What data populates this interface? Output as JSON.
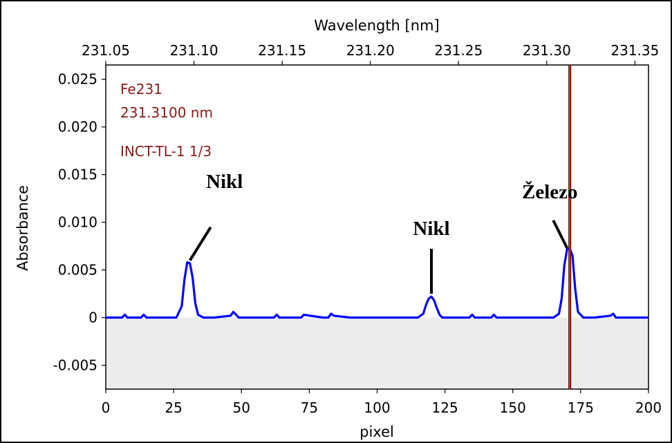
{
  "chart_data": {
    "type": "line",
    "xlabel": "pixel",
    "ylabel": "Absorbance",
    "top_axis_label": "Wavelength [nm]",
    "xlim": [
      0,
      200
    ],
    "ylim": [
      -0.0075,
      0.0265
    ],
    "x_ticks": [
      0,
      25,
      50,
      75,
      100,
      125,
      150,
      175,
      200
    ],
    "y_ticks": [
      -0.005,
      0,
      0.005,
      0.01,
      0.015,
      0.02,
      0.025
    ],
    "y_tick_labels": [
      "-0.005",
      "0",
      "0.005",
      "0.010",
      "0.015",
      "0.020",
      "0.025"
    ],
    "top_ticks": [
      {
        "label": "231.05",
        "pixel": 0
      },
      {
        "label": "231.10",
        "pixel": 32.5
      },
      {
        "label": "231.15",
        "pixel": 65
      },
      {
        "label": "231.20",
        "pixel": 97.5
      },
      {
        "label": "231.25",
        "pixel": 130
      },
      {
        "label": "231.30",
        "pixel": 162.5
      },
      {
        "label": "231.35",
        "pixel": 195
      }
    ],
    "info_lines": [
      "Fe231",
      "231.3100 nm",
      "INCT-TL-1 1/3"
    ],
    "marker_line": {
      "x": 171,
      "color": "#e0301e"
    },
    "series": [
      {
        "color": "#0000ff",
        "x": [
          0,
          6,
          7,
          8,
          13,
          14,
          15,
          20,
          26,
          28,
          29,
          30,
          31,
          32,
          33,
          34,
          36,
          40,
          46,
          47,
          48,
          49,
          54,
          58,
          62,
          63,
          64,
          70,
          72,
          73,
          80,
          82,
          83,
          84,
          90,
          98,
          105,
          110,
          115,
          117,
          118,
          119,
          120,
          121,
          122,
          123,
          124,
          126,
          130,
          134,
          135,
          136,
          142,
          143,
          144,
          150,
          158,
          165,
          167,
          168,
          169,
          170,
          171,
          172,
          173,
          174,
          176,
          180,
          186,
          187,
          188,
          195,
          200
        ],
        "y": [
          0.0,
          0.0,
          0.0003,
          0.0,
          0.0,
          0.0003,
          0.0,
          0.0,
          0.0,
          0.0012,
          0.004,
          0.0058,
          0.0057,
          0.0042,
          0.0015,
          0.0003,
          0.0,
          0.0,
          0.0002,
          0.0006,
          0.0003,
          0.0,
          0.0,
          0.0,
          0.0,
          0.0003,
          0.0,
          0.0,
          0.0,
          0.0003,
          0.0,
          0.0,
          0.0004,
          0.0002,
          0.0,
          0.0,
          0.0,
          0.0,
          0.0,
          0.0004,
          0.0013,
          0.002,
          0.0022,
          0.0018,
          0.001,
          0.0003,
          0.0,
          0.0,
          0.0,
          0.0,
          0.0003,
          0.0,
          0.0,
          0.0003,
          0.0,
          0.0,
          0.0,
          0.0,
          0.0004,
          0.002,
          0.0055,
          0.0072,
          0.0072,
          0.0065,
          0.003,
          0.0006,
          0.0,
          0.0,
          0.0002,
          0.0004,
          0.0,
          0.0,
          0.0
        ]
      }
    ],
    "annotations": [
      {
        "text": "Nikl",
        "point": [
          31,
          0.006
        ]
      },
      {
        "text": "Nikl",
        "point": [
          120,
          0.0025
        ]
      },
      {
        "text": "Železo",
        "point": [
          170,
          0.0073
        ]
      }
    ]
  }
}
